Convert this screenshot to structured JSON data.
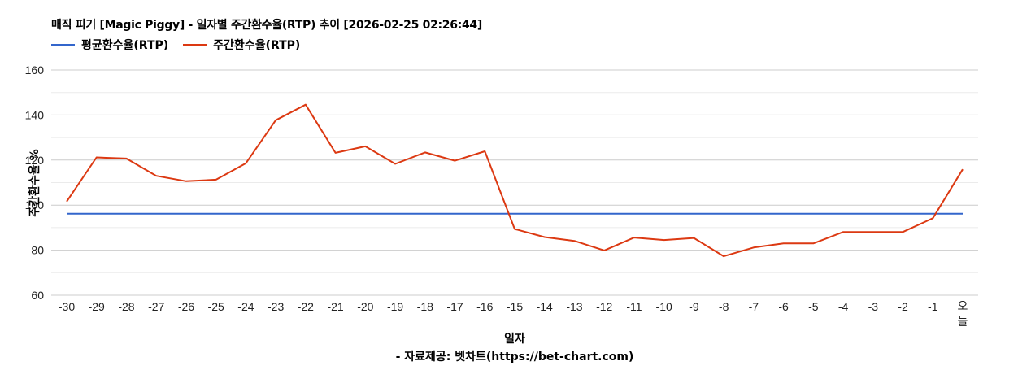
{
  "header": {
    "title": "매직 피기 [Magic Piggy] - 일자별 주간환수율(RTP) 추이 [2026-02-25 02:26:44]"
  },
  "legend": [
    {
      "label": "평균환수율(RTP)",
      "color": "#3366cc"
    },
    {
      "label": "주간환수율(RTP)",
      "color": "#dc3912"
    }
  ],
  "footer": {
    "credit": "- 자료제공: 벳차트(https://bet-chart.com)"
  },
  "chart_data": {
    "type": "line",
    "title": "매직 피기 [Magic Piggy] - 일자별 주간환수율(RTP) 추이 [2026-02-25 02:26:44]",
    "xlabel": "일자",
    "ylabel": "주간환수율 %",
    "ylim": [
      60,
      160
    ],
    "yticks": [
      60,
      80,
      100,
      120,
      140,
      160
    ],
    "grid": true,
    "legend_position": "top",
    "categories": [
      "-30",
      "-29",
      "-28",
      "-27",
      "-26",
      "-25",
      "-24",
      "-23",
      "-22",
      "-21",
      "-20",
      "-19",
      "-18",
      "-17",
      "-16",
      "-15",
      "-14",
      "-13",
      "-12",
      "-11",
      "-10",
      "-9",
      "-8",
      "-7",
      "-6",
      "-5",
      "-4",
      "-3",
      "-2",
      "-1",
      "오늘"
    ],
    "series": [
      {
        "name": "평균환수율(RTP)",
        "color": "#3366cc",
        "values": [
          96.2,
          96.2,
          96.2,
          96.2,
          96.2,
          96.2,
          96.2,
          96.2,
          96.2,
          96.2,
          96.2,
          96.2,
          96.2,
          96.2,
          96.2,
          96.2,
          96.2,
          96.2,
          96.2,
          96.2,
          96.2,
          96.2,
          96.2,
          96.2,
          96.2,
          96.2,
          96.2,
          96.2,
          96.2,
          96.2,
          96.2
        ]
      },
      {
        "name": "주간환수율(RTP)",
        "color": "#dc3912",
        "values": [
          101.6,
          121.2,
          120.7,
          113.0,
          110.6,
          111.3,
          118.6,
          137.7,
          144.6,
          123.2,
          126.1,
          118.3,
          123.4,
          119.7,
          123.9,
          89.4,
          85.8,
          84.1,
          79.9,
          85.6,
          84.5,
          85.4,
          77.3,
          81.2,
          83.0,
          83.0,
          88.1,
          88.1,
          88.1,
          94.2,
          115.9
        ]
      }
    ]
  }
}
